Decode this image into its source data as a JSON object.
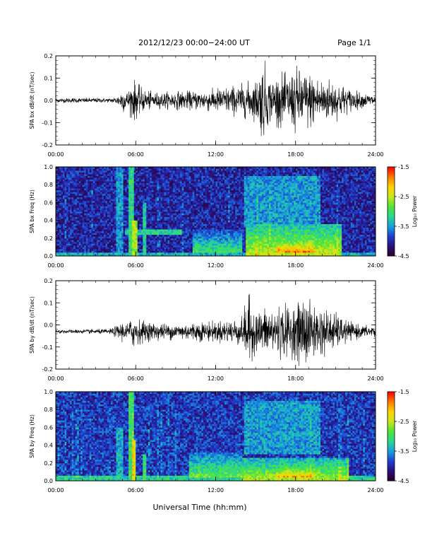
{
  "header": {
    "title": "2012/12/23  00:00−24:00 UT",
    "page": "Page 1/1"
  },
  "footer": {
    "xlabel": "Universal Time (hh:mm)"
  },
  "colors": {
    "trace": "#000000",
    "colormap": [
      "#2b0026",
      "#2a0f7a",
      "#1f3fd0",
      "#17a0e0",
      "#28d890",
      "#4fe43a",
      "#c8e81a",
      "#ffd400",
      "#ff7a00",
      "#ff0000"
    ]
  },
  "chart_data": [
    {
      "type": "line",
      "ylabel": "SPA bx dB/dt (nT/sec)",
      "x_ticks": [
        "00:00",
        "06:00",
        "12:00",
        "18:00",
        "24:00"
      ],
      "y_ticks": [
        "0.2",
        "0.1",
        "0.0",
        "-0.1",
        "-0.2"
      ],
      "xlim": [
        0,
        24
      ],
      "ylim": [
        -0.2,
        0.2
      ],
      "series": [
        {
          "x": [
            0,
            1,
            2,
            3,
            4,
            4.6,
            5.0,
            5.4,
            5.8,
            6.0,
            6.3,
            6.8,
            7.5,
            8,
            9,
            10,
            11,
            12,
            13,
            14,
            15,
            15.6,
            16,
            17,
            17.5,
            18,
            19,
            20,
            21,
            22,
            23,
            24
          ],
          "amplitude": [
            0.012,
            0.012,
            0.012,
            0.012,
            0.01,
            0.02,
            0.06,
            0.045,
            0.11,
            0.09,
            0.07,
            0.05,
            0.04,
            0.04,
            0.045,
            0.045,
            0.05,
            0.06,
            0.07,
            0.08,
            0.1,
            0.2,
            0.11,
            0.13,
            0.13,
            0.16,
            0.14,
            0.11,
            0.1,
            0.06,
            0.035,
            0.03
          ],
          "offset": 0.0
        }
      ]
    },
    {
      "type": "heatmap",
      "ylabel": "SPA bx Freq (Hz)",
      "x_ticks": [
        "00:00",
        "06:00",
        "12:00",
        "18:00",
        "24:00"
      ],
      "y_ticks": [
        "1.0",
        "0.8",
        "0.6",
        "0.4",
        "0.2",
        "0.0"
      ],
      "xlim": [
        0,
        24
      ],
      "ylim": [
        0,
        1
      ],
      "colorbar": {
        "label": "Log₁₀ Power",
        "ticks": [
          "-1.5",
          "-2.5",
          "-3.5",
          "-4.5"
        ],
        "range": [
          -4.5,
          -1.5
        ]
      },
      "background_log_power": -4.0,
      "features": [
        {
          "kind": "band",
          "t0": 0,
          "t1": 24,
          "f0": 0.0,
          "f1": 0.04,
          "value": -3.4
        },
        {
          "kind": "band",
          "t0": 4.6,
          "t1": 5.0,
          "f0": 0.0,
          "f1": 1.0,
          "value": -3.5
        },
        {
          "kind": "band",
          "t0": 5.5,
          "t1": 5.8,
          "f0": 0.0,
          "f1": 1.0,
          "value": -3.1
        },
        {
          "kind": "band",
          "t0": 5.8,
          "t1": 6.1,
          "f0": 0.0,
          "f1": 0.4,
          "value": -2.6
        },
        {
          "kind": "band",
          "t0": 6.6,
          "t1": 6.8,
          "f0": 0.0,
          "f1": 0.6,
          "value": -3.3
        },
        {
          "kind": "band",
          "t0": 5.2,
          "t1": 9.5,
          "f0": 0.24,
          "f1": 0.29,
          "value": -3.2
        },
        {
          "kind": "blob",
          "t0": 10.3,
          "t1": 14.0,
          "f0": 0.05,
          "f1": 0.3,
          "value": -3.0
        },
        {
          "kind": "blob",
          "t0": 14.3,
          "t1": 21.5,
          "f0": 0.0,
          "f1": 0.35,
          "value": -2.4
        },
        {
          "kind": "blob",
          "t0": 16.5,
          "t1": 19.5,
          "f0": 0.05,
          "f1": 0.15,
          "value": -1.9
        },
        {
          "kind": "band",
          "t0": 14.2,
          "t1": 19.8,
          "f0": 0.35,
          "f1": 0.9,
          "value": -3.5
        }
      ]
    },
    {
      "type": "line",
      "ylabel": "SPA by dB/dt (nT/sec)",
      "x_ticks": [
        "00:00",
        "06:00",
        "12:00",
        "18:00",
        "24:00"
      ],
      "y_ticks": [
        "0.2",
        "0.1",
        "0.0",
        "-0.1",
        "-0.2"
      ],
      "xlim": [
        0,
        24
      ],
      "ylim": [
        -0.2,
        0.2
      ],
      "series": [
        {
          "x": [
            0,
            1,
            2,
            3,
            4,
            4.6,
            5.0,
            5.4,
            5.8,
            6.0,
            6.3,
            6.8,
            7.5,
            8,
            9,
            10,
            11,
            12,
            13,
            14,
            14.4,
            15,
            16,
            17,
            18,
            18.7,
            19,
            20,
            21,
            22,
            23,
            24
          ],
          "amplitude": [
            0.01,
            0.01,
            0.01,
            0.012,
            0.012,
            0.03,
            0.05,
            0.04,
            0.09,
            0.07,
            0.06,
            0.05,
            0.045,
            0.04,
            0.04,
            0.045,
            0.05,
            0.05,
            0.06,
            0.07,
            0.19,
            0.1,
            0.12,
            0.13,
            0.13,
            0.2,
            0.15,
            0.12,
            0.09,
            0.05,
            0.03,
            0.03
          ],
          "offset": -0.03
        }
      ]
    },
    {
      "type": "heatmap",
      "ylabel": "SPA by Freq (Hz)",
      "x_ticks": [
        "00:00",
        "06:00",
        "12:00",
        "18:00",
        "24:00"
      ],
      "y_ticks": [
        "1.0",
        "0.8",
        "0.6",
        "0.4",
        "0.2",
        "0.0"
      ],
      "xlim": [
        0,
        24
      ],
      "ylim": [
        0,
        1
      ],
      "colorbar": {
        "label": "Log₁₀ Power",
        "ticks": [
          "-1.5",
          "-2.5",
          "-3.5",
          "-4.5"
        ],
        "range": [
          -4.5,
          -1.5
        ]
      },
      "background_log_power": -3.9,
      "features": [
        {
          "kind": "band",
          "t0": 0,
          "t1": 24,
          "f0": 0.0,
          "f1": 0.06,
          "value": -3.2
        },
        {
          "kind": "band",
          "t0": 4.6,
          "t1": 5.0,
          "f0": 0.0,
          "f1": 0.6,
          "value": -3.4
        },
        {
          "kind": "band",
          "t0": 5.5,
          "t1": 5.8,
          "f0": 0.0,
          "f1": 1.0,
          "value": -3.0
        },
        {
          "kind": "band",
          "t0": 5.7,
          "t1": 6.0,
          "f0": 0.0,
          "f1": 0.45,
          "value": -2.4
        },
        {
          "kind": "band",
          "t0": 6.6,
          "t1": 6.8,
          "f0": 0.0,
          "f1": 0.3,
          "value": -3.0
        },
        {
          "kind": "blob",
          "t0": 10.0,
          "t1": 14.0,
          "f0": 0.05,
          "f1": 0.32,
          "value": -2.8
        },
        {
          "kind": "blob",
          "t0": 14.0,
          "t1": 22.0,
          "f0": 0.0,
          "f1": 0.25,
          "value": -2.5
        },
        {
          "kind": "blob",
          "t0": 16.5,
          "t1": 19.5,
          "f0": 0.05,
          "f1": 0.14,
          "value": -2.1
        },
        {
          "kind": "band",
          "t0": 14.2,
          "t1": 19.8,
          "f0": 0.3,
          "f1": 0.9,
          "value": -3.5
        }
      ]
    }
  ]
}
